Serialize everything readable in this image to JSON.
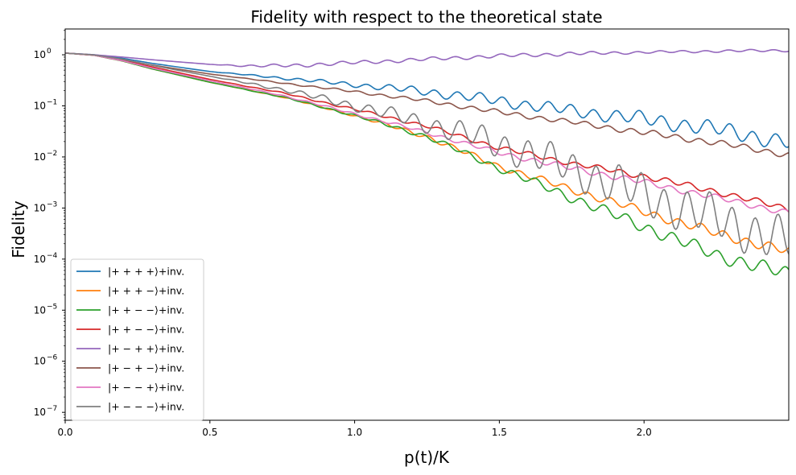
{
  "chart_data": {
    "type": "line",
    "title": "Fidelity with respect to the theoretical state",
    "xlabel": "p(t)/K",
    "ylabel": "Fidelity",
    "xlim": [
      0,
      2.5
    ],
    "ylim": [
      7e-08,
      3.2
    ],
    "yscale": "log",
    "grid": false,
    "legend_position": "lower left",
    "x_ticks": [
      0.0,
      0.5,
      1.0,
      1.5,
      2.0
    ],
    "x_tick_labels": [
      "0.0",
      "0.5",
      "1.0",
      "1.5",
      "2.0"
    ],
    "y_ticks": [
      1e-07,
      1e-06,
      1e-05,
      0.0001,
      0.001,
      0.01,
      0.1,
      1
    ],
    "y_tick_bases": [
      "10",
      "10",
      "10",
      "10",
      "10",
      "10",
      "10",
      "10"
    ],
    "y_tick_exponents": [
      "−7",
      "−6",
      "−5",
      "−4",
      "−3",
      "−2",
      "−1",
      "0"
    ],
    "series": [
      {
        "name": "|+ + + +⟩+inv.",
        "color": "#1f77b4",
        "x": [
          0,
          0.1,
          0.2,
          0.3,
          0.5,
          0.75,
          1.0,
          1.25,
          1.5,
          1.75,
          2.0,
          2.25,
          2.5
        ],
        "y": [
          1.08,
          1.0,
          0.85,
          0.68,
          0.47,
          0.35,
          0.26,
          0.19,
          0.125,
          0.08,
          0.055,
          0.035,
          0.019
        ],
        "osc": [
          0,
          0,
          0,
          0,
          0,
          0.02,
          0.04,
          0.07,
          0.09,
          0.1,
          0.12,
          0.13,
          0.13
        ]
      },
      {
        "name": "|+ + + −⟩+inv.",
        "color": "#ff7f0e",
        "x": [
          0,
          0.1,
          0.2,
          0.3,
          0.5,
          0.75,
          1.0,
          1.25,
          1.5,
          1.75,
          2.0,
          2.25,
          2.5
        ],
        "y": [
          1.08,
          0.98,
          0.75,
          0.53,
          0.29,
          0.15,
          0.065,
          0.025,
          0.0065,
          0.0023,
          0.00085,
          0.00032,
          0.00014
        ],
        "osc": [
          0,
          0,
          0,
          0,
          0,
          0.01,
          0.02,
          0.04,
          0.05,
          0.06,
          0.07,
          0.08,
          0.08
        ]
      },
      {
        "name": "|+ + − −⟩+inv.",
        "color": "#2ca02c",
        "x": [
          0,
          0.1,
          0.2,
          0.3,
          0.5,
          0.75,
          1.0,
          1.25,
          1.5,
          1.75,
          2.0,
          2.25,
          2.5
        ],
        "y": [
          1.08,
          0.98,
          0.75,
          0.53,
          0.29,
          0.15,
          0.065,
          0.025,
          0.006,
          0.0016,
          0.00043,
          0.00012,
          5e-05
        ],
        "osc": [
          0,
          0,
          0,
          0,
          0,
          0.01,
          0.02,
          0.04,
          0.06,
          0.08,
          0.1,
          0.11,
          0.12
        ]
      },
      {
        "name": "|+ + − −⟩+inv.",
        "color": "#d62728",
        "x": [
          0,
          0.1,
          0.2,
          0.3,
          0.5,
          0.75,
          1.0,
          1.25,
          1.5,
          1.75,
          2.0,
          2.25,
          2.5
        ],
        "y": [
          1.08,
          0.98,
          0.78,
          0.58,
          0.33,
          0.18,
          0.085,
          0.04,
          0.015,
          0.0075,
          0.0042,
          0.0021,
          0.00095
        ],
        "osc": [
          0,
          0,
          0,
          0,
          0,
          0.01,
          0.02,
          0.03,
          0.04,
          0.04,
          0.05,
          0.05,
          0.05
        ]
      },
      {
        "name": "|+ − + +⟩+inv.",
        "color": "#9467bd",
        "x": [
          0,
          0.1,
          0.2,
          0.3,
          0.4,
          0.5,
          0.65,
          0.8,
          1.0,
          1.25,
          1.5,
          1.75,
          2.0,
          2.25,
          2.5
        ],
        "y": [
          1.08,
          1.0,
          0.9,
          0.8,
          0.72,
          0.65,
          0.6,
          0.62,
          0.7,
          0.82,
          0.95,
          1.05,
          1.12,
          1.18,
          1.22
        ],
        "osc": [
          0,
          0,
          0,
          0,
          0,
          0,
          0.02,
          0.03,
          0.03,
          0.03,
          0.03,
          0.03,
          0.02,
          0.02,
          0.02
        ]
      },
      {
        "name": "|+ − + −⟩+inv.",
        "color": "#8c564b",
        "x": [
          0,
          0.1,
          0.2,
          0.3,
          0.5,
          0.75,
          1.0,
          1.25,
          1.5,
          1.75,
          2.0,
          2.25,
          2.5
        ],
        "y": [
          1.08,
          0.99,
          0.8,
          0.63,
          0.42,
          0.28,
          0.19,
          0.125,
          0.075,
          0.048,
          0.03,
          0.019,
          0.011
        ],
        "osc": [
          0,
          0,
          0,
          0,
          0,
          0.01,
          0.02,
          0.03,
          0.04,
          0.04,
          0.05,
          0.05,
          0.05
        ]
      },
      {
        "name": "|+ − − +⟩+inv.",
        "color": "#e377c2",
        "x": [
          0,
          0.1,
          0.2,
          0.3,
          0.5,
          0.75,
          1.0,
          1.25,
          1.5,
          1.75,
          2.0,
          2.25,
          2.5
        ],
        "y": [
          1.08,
          0.98,
          0.76,
          0.55,
          0.31,
          0.16,
          0.07,
          0.03,
          0.012,
          0.006,
          0.0032,
          0.0016,
          0.0008
        ],
        "osc": [
          0,
          0,
          0,
          0,
          0,
          0.01,
          0.02,
          0.03,
          0.04,
          0.05,
          0.05,
          0.05,
          0.05
        ]
      },
      {
        "name": "|+ − − −⟩+inv.",
        "color": "#7f7f7f",
        "x": [
          0,
          0.1,
          0.2,
          0.3,
          0.5,
          0.75,
          1.0,
          1.25,
          1.5,
          1.75,
          2.0,
          2.25,
          2.5
        ],
        "y": [
          1.08,
          0.99,
          0.82,
          0.62,
          0.38,
          0.21,
          0.1,
          0.045,
          0.018,
          0.006,
          0.0018,
          0.0006,
          0.00022
        ],
        "osc": [
          0,
          0,
          0,
          0,
          0,
          0.03,
          0.08,
          0.15,
          0.25,
          0.3,
          0.35,
          0.37,
          0.38
        ]
      }
    ]
  }
}
